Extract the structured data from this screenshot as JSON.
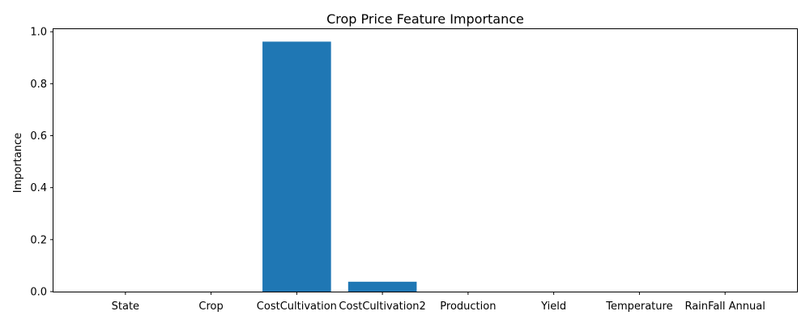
{
  "chart_data": {
    "type": "bar",
    "title": "Crop Price Feature Importance",
    "xlabel": "",
    "ylabel": "Importance",
    "categories": [
      "State",
      "Crop",
      "CostCultivation",
      "CostCultivation2",
      "Production",
      "Yield",
      "Temperature",
      "RainFall Annual"
    ],
    "values": [
      0.0,
      0.0,
      0.962,
      0.038,
      0.0,
      0.0,
      0.0,
      0.0
    ],
    "ylim": [
      0,
      1.01
    ],
    "yticks": [
      "0.0",
      "0.2",
      "0.4",
      "0.6",
      "0.8",
      "1.0"
    ],
    "ytick_values": [
      0.0,
      0.2,
      0.4,
      0.6,
      0.8,
      1.0
    ],
    "bar_color": "#1f77b4",
    "grid": false,
    "legend": "none"
  }
}
